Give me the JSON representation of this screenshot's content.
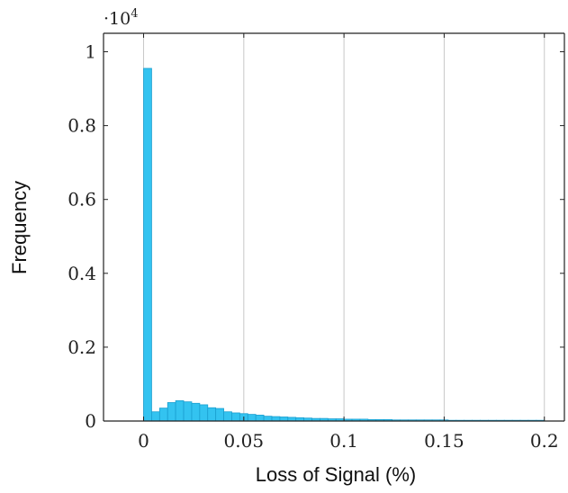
{
  "chart_data": {
    "type": "bar",
    "title": "",
    "xlabel": "Loss of Signal (%)",
    "ylabel": "Frequency",
    "y_scale_label": "·10",
    "y_scale_exponent": "4",
    "xlim": [
      -0.02,
      0.21
    ],
    "ylim": [
      0,
      1.05
    ],
    "x_ticks": [
      0,
      0.05,
      0.1,
      0.15,
      0.2
    ],
    "x_tick_labels": [
      "0",
      "0.05",
      "0.1",
      "0.15",
      "0.2"
    ],
    "y_ticks": [
      0,
      0.2,
      0.4,
      0.6,
      0.8,
      1
    ],
    "y_tick_labels": [
      "0",
      "0.2",
      "0.4",
      "0.6",
      "0.8",
      "1"
    ],
    "grid": "vertical",
    "bin_width": 0.004,
    "bin_start": 0,
    "values": [
      0.955,
      0.025,
      0.035,
      0.05,
      0.055,
      0.052,
      0.048,
      0.044,
      0.036,
      0.034,
      0.025,
      0.022,
      0.02,
      0.018,
      0.016,
      0.013,
      0.012,
      0.011,
      0.01,
      0.009,
      0.008,
      0.007,
      0.007,
      0.006,
      0.006,
      0.005,
      0.005,
      0.005,
      0.004,
      0.004,
      0.004,
      0.003,
      0.003,
      0.003,
      0.003,
      0.003,
      0.003,
      0.003,
      0.002,
      0.002,
      0.002,
      0.002,
      0.002,
      0.002,
      0.002,
      0.002,
      0.002,
      0.002,
      0.002,
      0.002
    ],
    "bar_color": "#33c3f0",
    "bar_edge_color": "#1a9fd0",
    "grid_color": "#c8c8c8"
  }
}
